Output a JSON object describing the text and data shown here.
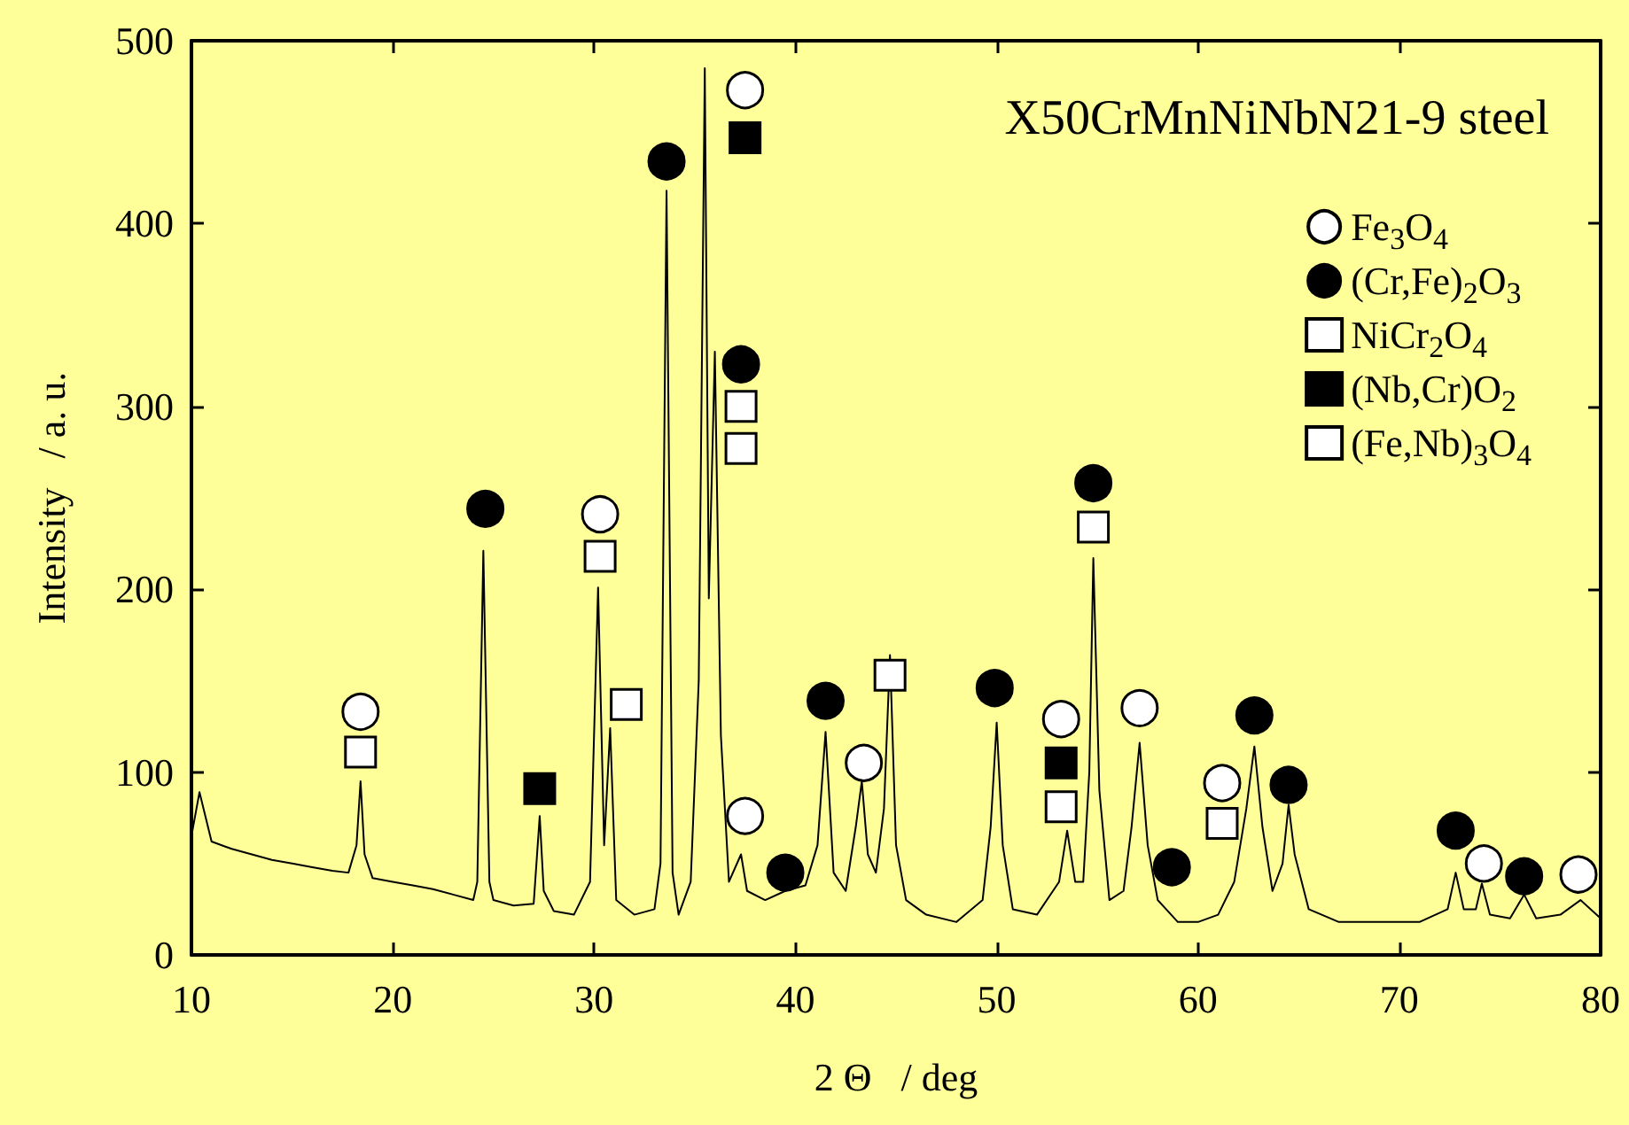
{
  "chart_data": {
    "type": "line",
    "title": "X50CrMnNiNbN21-9 steel",
    "xlabel": "2 Θ   / deg",
    "ylabel": "Intensity   / a. u.",
    "xlim": [
      10,
      80
    ],
    "xticks": [
      10,
      20,
      30,
      40,
      50,
      60,
      70,
      80
    ],
    "ylim": [
      0,
      500
    ],
    "yticks": [
      0,
      100,
      200,
      300,
      400,
      500
    ],
    "grid": false,
    "legend": "top right",
    "series": [
      {
        "color": "#000000",
        "marker": "none",
        "x": [
          10,
          10.4,
          11,
          12,
          13,
          14,
          15,
          16,
          17,
          17.8,
          18.2,
          18.4,
          18.6,
          19,
          20,
          21,
          22,
          23,
          24,
          24.2,
          24.5,
          24.8,
          25,
          26,
          27,
          27.3,
          27.5,
          28,
          29,
          29.8,
          30.2,
          30.5,
          30.8,
          31.1,
          32,
          33,
          33.3,
          33.6,
          33.9,
          34.2,
          34.8,
          35.2,
          35.5,
          35.7,
          36.0,
          36.3,
          36.7,
          37.3,
          37.6,
          38.5,
          39.5,
          40.5,
          41.1,
          41.5,
          41.9,
          42.5,
          43.0,
          43.3,
          43.6,
          44.0,
          44.4,
          44.7,
          45.0,
          45.5,
          46.5,
          48,
          49.3,
          49.7,
          50.0,
          50.3,
          50.8,
          52,
          53.1,
          53.5,
          53.9,
          54.3,
          54.6,
          54.8,
          55.1,
          55.6,
          56.3,
          56.7,
          57.1,
          57.5,
          58,
          59,
          60,
          61,
          61.8,
          62.4,
          62.8,
          63.2,
          63.7,
          64.2,
          64.5,
          64.8,
          65.5,
          67,
          69,
          71,
          72.4,
          72.8,
          73.2,
          73.8,
          74.1,
          74.5,
          75.5,
          76.2,
          76.8,
          78,
          79,
          80
        ],
        "values": [
          65,
          89,
          62,
          58,
          55,
          52,
          50,
          48,
          46,
          45,
          60,
          95,
          55,
          42,
          40,
          38,
          36,
          33,
          30,
          40,
          221,
          40,
          30,
          27,
          28,
          76,
          35,
          24,
          22,
          40,
          201,
          60,
          124,
          30,
          22,
          25,
          50,
          418,
          45,
          22,
          40,
          150,
          485,
          195,
          330,
          120,
          40,
          55,
          35,
          30,
          35,
          38,
          60,
          122,
          45,
          35,
          70,
          95,
          55,
          45,
          80,
          164,
          60,
          30,
          22,
          18,
          30,
          70,
          127,
          60,
          25,
          22,
          40,
          68,
          40,
          40,
          100,
          217,
          90,
          30,
          35,
          70,
          116,
          60,
          30,
          18,
          18,
          22,
          40,
          80,
          114,
          70,
          35,
          50,
          82,
          55,
          25,
          18,
          18,
          18,
          25,
          45,
          25,
          25,
          39,
          22,
          20,
          33,
          20,
          22,
          30,
          20
        ]
      },
      {
        "type": "scatter",
        "name": "Fe$_{3}$O$_{4}$",
        "color": "#ffffff",
        "marker": "circle",
        "x": [
          18.4,
          30.3,
          37.5,
          37.5,
          43.4,
          53.2,
          57.1,
          61.2,
          74.2,
          78.9
        ],
        "values": [
          133,
          241,
          473,
          76,
          105,
          129,
          135,
          94,
          50,
          44
        ]
      },
      {
        "type": "scatter",
        "name": "(Cr,Fe)$_{2}$O$_{3}$",
        "color": "#000000",
        "marker": "circle",
        "x": [
          24.6,
          33.6,
          37.3,
          39.5,
          41.5,
          49.9,
          54.8,
          58.7,
          62.8,
          64.5,
          72.8,
          76.2
        ],
        "values": [
          244,
          434,
          323,
          45,
          139,
          146,
          258,
          48,
          131,
          93,
          68,
          43
        ]
      },
      {
        "type": "scatter",
        "name": "NiCr$_{2}$O$_{4}$",
        "color": "#ffffff",
        "marker": "square",
        "x": [
          18.4,
          30.3,
          37.3,
          44.7,
          53.2,
          54.8,
          61.2
        ],
        "values": [
          111,
          218,
          300,
          153,
          81,
          234,
          72
        ]
      },
      {
        "type": "scatter",
        "name": "(Nb,Cr)O$_{2}$",
        "color": "#000000",
        "marker": "square",
        "x": [
          27.3,
          37.5,
          53.2
        ],
        "values": [
          91,
          447,
          105
        ]
      },
      {
        "type": "scatter",
        "name": "(Fe,Nb)$_{3}$O$_{4}$",
        "color": "#ffffff",
        "marker": "square",
        "x": [
          31.6,
          37.3
        ],
        "values": [
          137,
          277
        ]
      }
    ]
  }
}
